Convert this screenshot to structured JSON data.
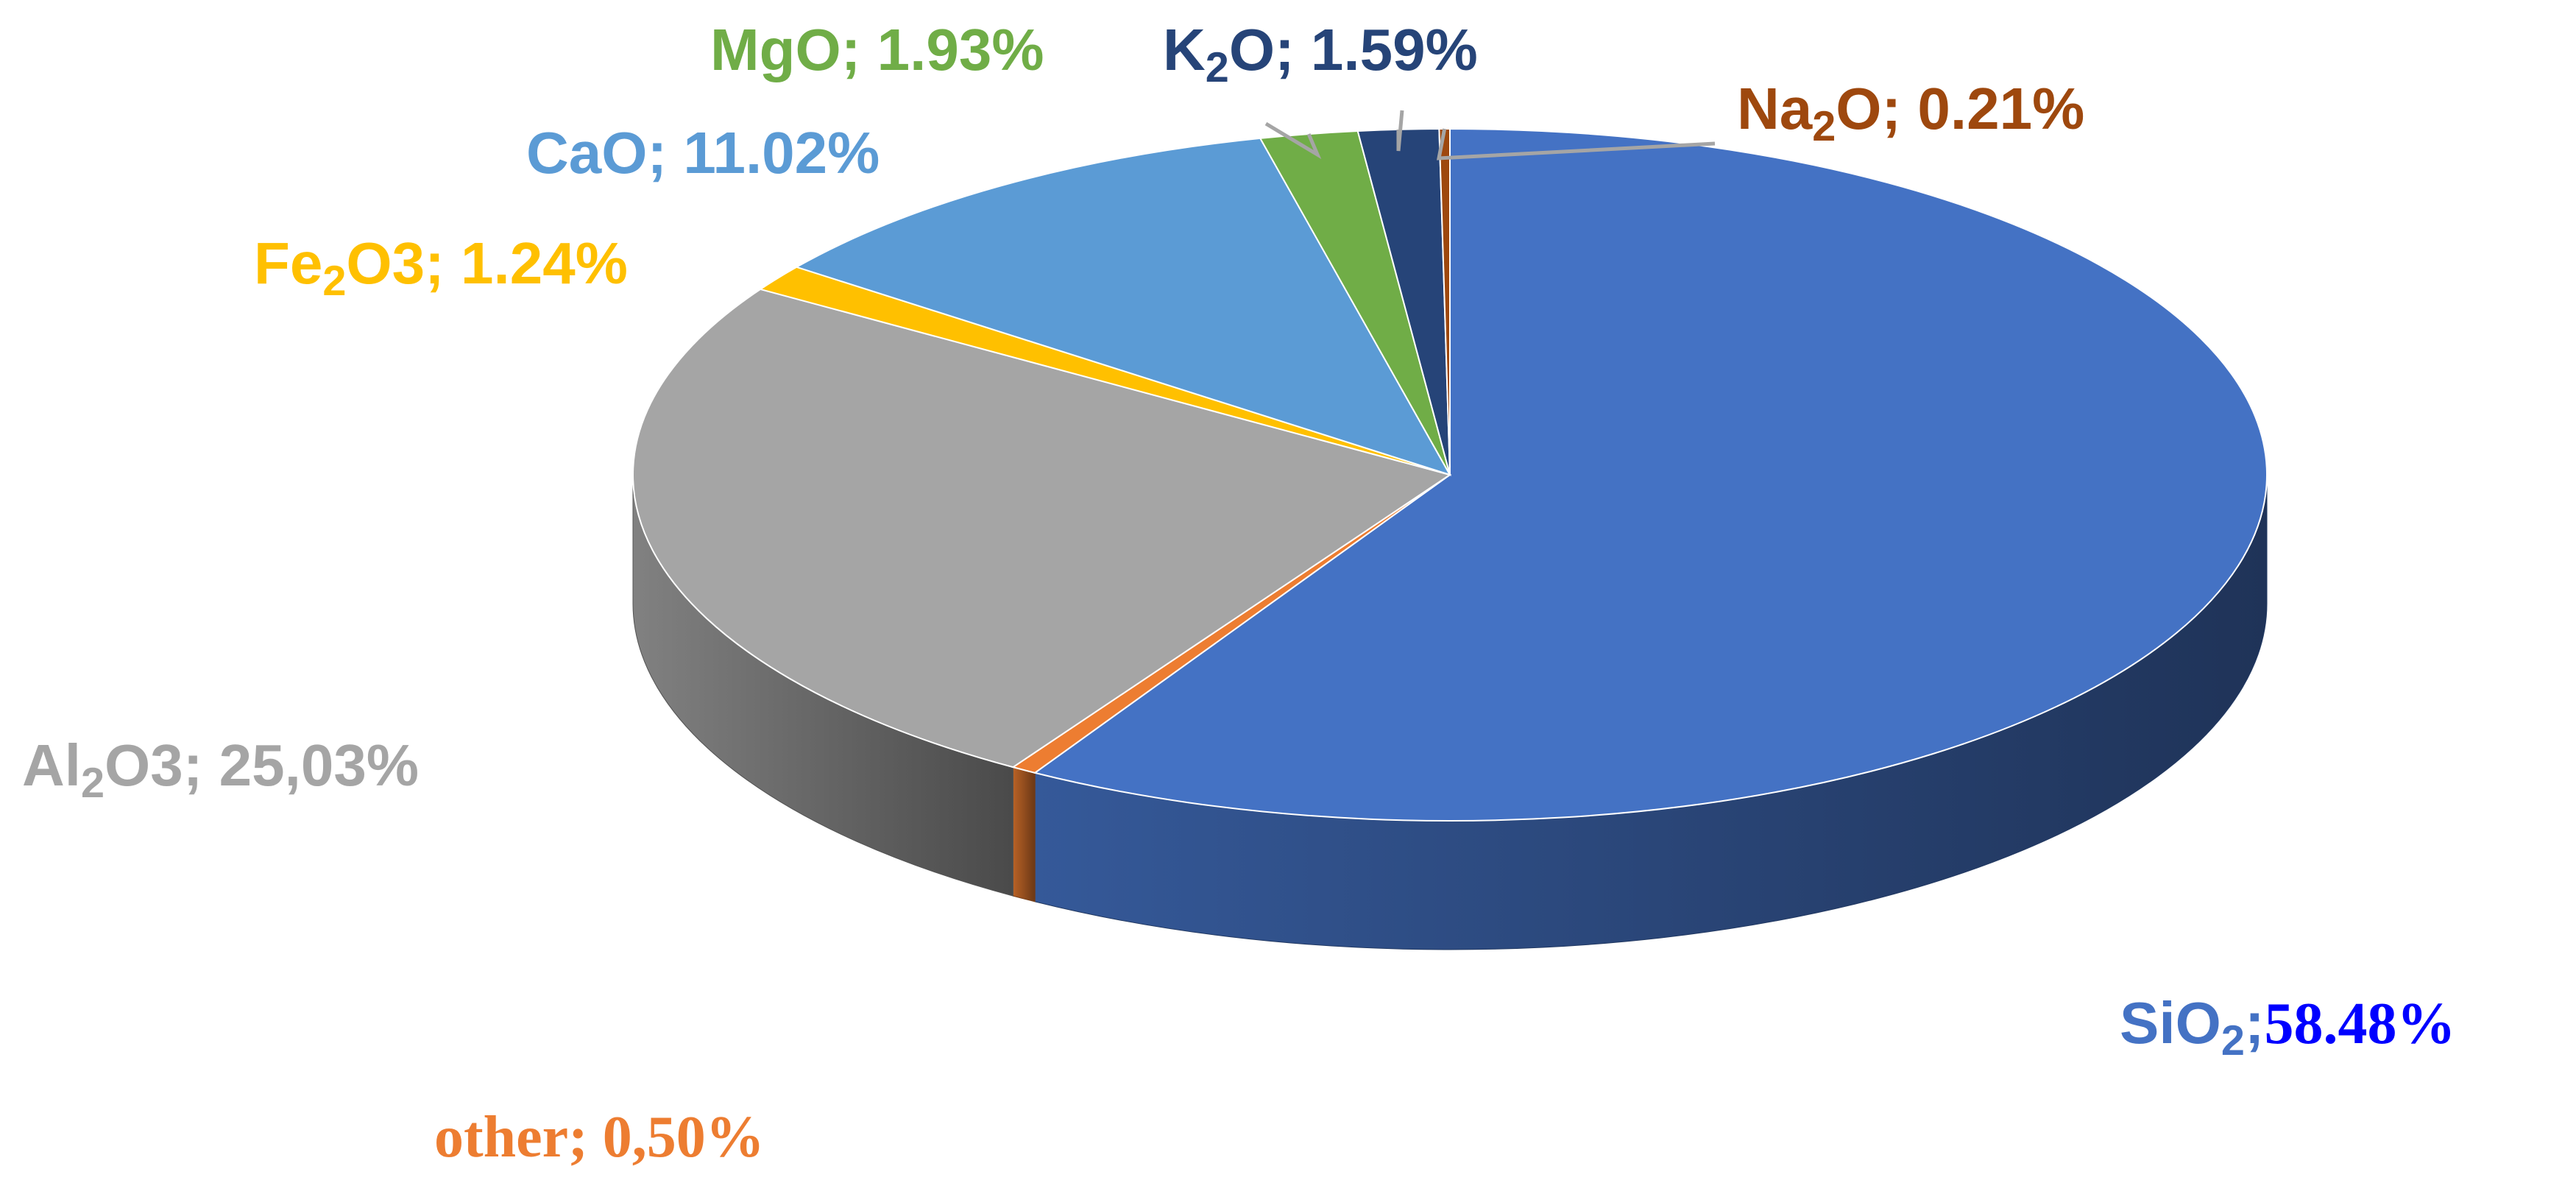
{
  "chart_data": {
    "type": "pie",
    "three_d": true,
    "title": "",
    "legend": "none",
    "slices": [
      {
        "label": "SiO",
        "sub": "2",
        "suffix": "",
        "sep": ";",
        "value": 58.48,
        "value_label": "58.48%",
        "color": "#4472c4",
        "label_color": "#4472c4",
        "value_color": "#0000ff"
      },
      {
        "label": "other",
        "sub": "",
        "suffix": "",
        "sep": "; ",
        "value": 0.5,
        "value_label": "0,50%",
        "color": "#ed7d31",
        "label_color": "#ed7d31",
        "value_color": "#ed7d31"
      },
      {
        "label": "Al",
        "sub": "2",
        "suffix": "O3",
        "sep": "; ",
        "value": 25.03,
        "value_label": "25,03%",
        "color": "#a5a5a5",
        "label_color": "#a5a5a5",
        "value_color": "#a5a5a5"
      },
      {
        "label": "Fe",
        "sub": "2",
        "suffix": "O3",
        "sep": "; ",
        "value": 1.24,
        "value_label": "1.24%",
        "color": "#ffc000",
        "label_color": "#ffc000",
        "value_color": "#ffc000"
      },
      {
        "label": "CaO",
        "sub": "",
        "suffix": "",
        "sep": "; ",
        "value": 11.02,
        "value_label": "11.02%",
        "color": "#5b9bd5",
        "label_color": "#5b9bd5",
        "value_color": "#5b9bd5"
      },
      {
        "label": "MgO",
        "sub": "",
        "suffix": "",
        "sep": "; ",
        "value": 1.93,
        "value_label": "1.93%",
        "color": "#70ad47",
        "label_color": "#70ad47",
        "value_color": "#70ad47"
      },
      {
        "label": "K",
        "sub": "2",
        "suffix": "O",
        "sep": "; ",
        "value": 1.59,
        "value_label": "1.59%",
        "color": "#264478",
        "label_color": "#264478",
        "value_color": "#264478"
      },
      {
        "label": "Na",
        "sub": "2",
        "suffix": "O",
        "sep": "; ",
        "value": 0.21,
        "value_label": "0.21%",
        "color": "#9e480e",
        "label_color": "#9e480e",
        "value_color": "#9e480e"
      }
    ]
  }
}
